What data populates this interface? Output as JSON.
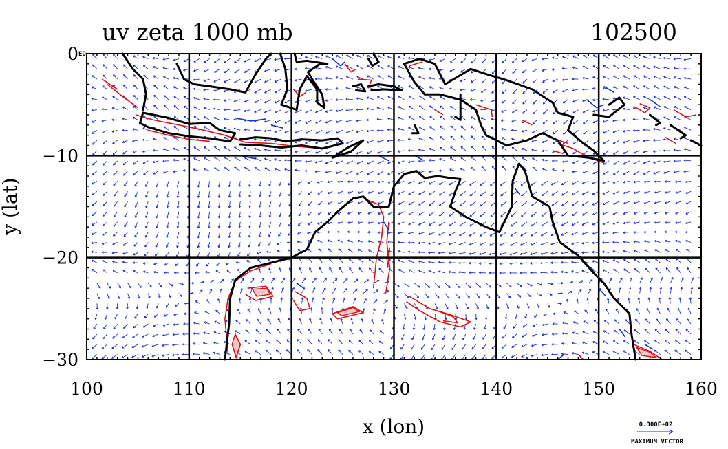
{
  "chart_data": {
    "type": "vector-field-with-contours",
    "title": "uv zeta 1000 mb",
    "time_label": "102500",
    "xlabel": "x (lon)",
    "ylabel": "y (lat)",
    "xlim": [
      100,
      160
    ],
    "ylim": [
      -30,
      0
    ],
    "x_ticks": [
      100,
      110,
      120,
      130,
      140,
      150,
      160
    ],
    "y_ticks": [
      0,
      -10,
      -20,
      -30
    ],
    "x_tick_labels": [
      "100",
      "110",
      "120",
      "130",
      "140",
      "150",
      "160"
    ],
    "y_tick_labels": [
      "0",
      "−10",
      "−20",
      "−30"
    ],
    "corner_label": "EQ",
    "grid_lines_lon": [
      110,
      120,
      130,
      140,
      150
    ],
    "grid_lines_lat": [
      -10,
      -20
    ],
    "vector_grid": {
      "lon_step": 2,
      "lat_step": 2
    },
    "legend": {
      "max_vector_value": "0.300E+02",
      "max_vector_label": "MAXIMUM VECTOR"
    },
    "colors": {
      "vectors": "#1f2fd6",
      "positive_contours": "#e01010",
      "negative_contours": "#1030d0",
      "coastline": "#000000",
      "fill": "#f4c8c8"
    },
    "coastlines": [
      [
        [
          113.5,
          -30
        ],
        [
          113.9,
          -26.5
        ],
        [
          114.0,
          -24
        ],
        [
          114.5,
          -22.2
        ],
        [
          116.0,
          -21
        ],
        [
          118.0,
          -20.5
        ],
        [
          120.0,
          -20.0
        ],
        [
          121.5,
          -19.2
        ],
        [
          122.3,
          -17.5
        ],
        [
          123.5,
          -16.5
        ],
        [
          124.5,
          -15.5
        ],
        [
          126.0,
          -14.2
        ],
        [
          127.0,
          -14.0
        ],
        [
          128.0,
          -15.0
        ],
        [
          129.5,
          -15.0
        ],
        [
          130.0,
          -13.0
        ],
        [
          131.0,
          -11.8
        ],
        [
          132.2,
          -11.5
        ],
        [
          133.0,
          -12.2
        ],
        [
          134.3,
          -12.0
        ],
        [
          135.5,
          -12.2
        ],
        [
          136.5,
          -12.3
        ],
        [
          136.0,
          -13.5
        ],
        [
          135.5,
          -15.0
        ],
        [
          137.0,
          -16.0
        ],
        [
          139.0,
          -17.0
        ],
        [
          140.3,
          -17.5
        ],
        [
          141.5,
          -15.0
        ],
        [
          141.6,
          -12.5
        ],
        [
          142.2,
          -10.8
        ],
        [
          142.8,
          -11.5
        ],
        [
          143.5,
          -14.0
        ],
        [
          145.2,
          -15.0
        ],
        [
          145.5,
          -16.5
        ],
        [
          146.2,
          -18.5
        ],
        [
          148.0,
          -19.8
        ],
        [
          149.5,
          -21.5
        ],
        [
          150.5,
          -22.5
        ],
        [
          151.5,
          -24.0
        ],
        [
          153.0,
          -25.5
        ],
        [
          153.2,
          -27.5
        ],
        [
          153.6,
          -30
        ]
      ],
      [
        [
          105.5,
          -5.8
        ],
        [
          108.0,
          -6.3
        ],
        [
          110.0,
          -6.9
        ],
        [
          112.0,
          -6.8
        ],
        [
          113.0,
          -7.5
        ],
        [
          114.5,
          -7.8
        ],
        [
          114.0,
          -8.6
        ],
        [
          112.0,
          -8.3
        ],
        [
          110.0,
          -8.1
        ],
        [
          108.0,
          -7.8
        ],
        [
          106.0,
          -7.2
        ],
        [
          105.2,
          -6.8
        ],
        [
          105.5,
          -5.8
        ]
      ],
      [
        [
          115.0,
          -8.4
        ],
        [
          116.5,
          -8.2
        ],
        [
          118.0,
          -8.3
        ],
        [
          119.5,
          -8.6
        ],
        [
          121.0,
          -8.4
        ],
        [
          123.0,
          -8.5
        ],
        [
          124.5,
          -8.3
        ],
        [
          125.0,
          -8.8
        ],
        [
          123.0,
          -9.3
        ],
        [
          121.0,
          -9.0
        ],
        [
          119.0,
          -9.2
        ],
        [
          117.0,
          -9.0
        ],
        [
          115.0,
          -8.9
        ]
      ],
      [
        [
          124.0,
          -10.2
        ],
        [
          125.5,
          -9.2
        ],
        [
          127.0,
          -8.5
        ],
        [
          125.8,
          -9.6
        ],
        [
          124.0,
          -10.2
        ]
      ],
      [
        [
          108.8,
          -1.0
        ],
        [
          109.5,
          -2.5
        ],
        [
          110.5,
          -3.0
        ],
        [
          112.0,
          -3.2
        ],
        [
          114.0,
          -3.5
        ],
        [
          115.5,
          -3.8
        ],
        [
          116.5,
          -2.0
        ],
        [
          117.5,
          -0.5
        ],
        [
          118.0,
          0
        ]
      ],
      [
        [
          103.5,
          0
        ],
        [
          104.5,
          -1.5
        ],
        [
          105.5,
          -2.5
        ],
        [
          105.8,
          -4.0
        ],
        [
          105.5,
          -5.5
        ]
      ],
      [
        [
          118.9,
          0
        ],
        [
          119.4,
          -1.5
        ],
        [
          119.6,
          -3.5
        ],
        [
          119.0,
          -5.0
        ],
        [
          120.5,
          -5.5
        ],
        [
          120.8,
          -3.5
        ],
        [
          121.5,
          -2.2
        ],
        [
          122.5,
          -3.5
        ],
        [
          122.5,
          -4.8
        ],
        [
          123.2,
          -5.3
        ],
        [
          123.0,
          -4.0
        ],
        [
          122.2,
          -2.8
        ],
        [
          121.6,
          -1.8
        ],
        [
          122.8,
          -1.0
        ],
        [
          123.5,
          -1.0
        ],
        [
          121.5,
          -0.7
        ],
        [
          120.5,
          -0.8
        ],
        [
          120.3,
          0
        ]
      ],
      [
        [
          131.0,
          -1.0
        ],
        [
          132.5,
          -0.5
        ],
        [
          134.0,
          -1.0
        ],
        [
          135.0,
          -3.0
        ],
        [
          137.5,
          -1.5
        ],
        [
          139.0,
          -2.0
        ],
        [
          141.0,
          -2.6
        ],
        [
          143.5,
          -3.5
        ],
        [
          145.5,
          -4.8
        ],
        [
          146.0,
          -5.8
        ],
        [
          147.5,
          -6.2
        ],
        [
          147.0,
          -7.5
        ],
        [
          148.5,
          -8.8
        ],
        [
          149.5,
          -9.5
        ],
        [
          150.5,
          -10.5
        ],
        [
          149.0,
          -10.2
        ],
        [
          147.0,
          -10.0
        ],
        [
          146.0,
          -8.5
        ],
        [
          144.5,
          -7.8
        ],
        [
          143.0,
          -8.5
        ],
        [
          141.0,
          -9.0
        ],
        [
          139.0,
          -8.0
        ],
        [
          138.5,
          -7.0
        ],
        [
          138.0,
          -5.5
        ],
        [
          136.5,
          -4.5
        ],
        [
          134.5,
          -4.0
        ],
        [
          133.0,
          -4.0
        ],
        [
          132.0,
          -2.8
        ],
        [
          131.0,
          -1.0
        ]
      ],
      [
        [
          127.5,
          -3.2
        ],
        [
          128.5,
          -3.0
        ],
        [
          130.0,
          -3.2
        ],
        [
          130.8,
          -3.6
        ],
        [
          129.0,
          -3.5
        ],
        [
          127.8,
          -3.6
        ]
      ],
      [
        [
          126.0,
          -3.2
        ],
        [
          126.8,
          -3.0
        ],
        [
          127.2,
          -3.7
        ],
        [
          126.3,
          -3.6
        ]
      ],
      [
        [
          128.0,
          0
        ],
        [
          128.5,
          -0.8
        ],
        [
          127.9,
          -1.2
        ],
        [
          127.5,
          -0.5
        ]
      ],
      [
        [
          151.0,
          -5.0
        ],
        [
          152.0,
          -4.3
        ],
        [
          152.5,
          -5.0
        ],
        [
          151.0,
          -6.2
        ],
        [
          149.5,
          -6.0
        ]
      ],
      [
        [
          155.0,
          -6.0
        ],
        [
          156.0,
          -6.8
        ],
        [
          155.6,
          -7.0
        ]
      ],
      [
        [
          157.0,
          -7.0
        ],
        [
          158.5,
          -8.0
        ],
        [
          158.0,
          -8.3
        ]
      ],
      [
        [
          159.0,
          -8.5
        ],
        [
          160.0,
          -9.0
        ]
      ],
      [
        [
          136.5,
          -4.0
        ],
        [
          136.5,
          -6.5
        ],
        [
          136.0,
          -6.2
        ]
      ],
      [
        [
          132.0,
          -7.0
        ],
        [
          132.4,
          -7.8
        ],
        [
          131.8,
          -7.8
        ]
      ]
    ],
    "positive_contours": [
      [
        [
          113.8,
          -29.5
        ],
        [
          113.5,
          -26
        ],
        [
          113.8,
          -24
        ],
        [
          114.5,
          -22.3
        ],
        [
          116,
          -21.3
        ],
        [
          118,
          -20.6
        ]
      ],
      [
        [
          114.5,
          -27.5
        ],
        [
          115,
          -28.5
        ],
        [
          114.6,
          -29.8
        ],
        [
          114.2,
          -28.5
        ]
      ],
      [
        [
          115.7,
          -23.0
        ],
        [
          117.5,
          -22.8
        ],
        [
          118.2,
          -23.8
        ],
        [
          116.5,
          -24.2
        ],
        [
          115.5,
          -23.6
        ]
      ],
      [
        [
          120.3,
          -23.3
        ],
        [
          121.5,
          -24.0
        ],
        [
          121.8,
          -25.0
        ],
        [
          120.8,
          -25.2
        ],
        [
          120.2,
          -24.2
        ]
      ],
      [
        [
          124.0,
          -25.5
        ],
        [
          126.0,
          -24.8
        ],
        [
          127.0,
          -25.4
        ],
        [
          124.5,
          -26.0
        ],
        [
          124.0,
          -25.5
        ]
      ],
      [
        [
          128.0,
          -23.0
        ],
        [
          128.3,
          -20.0
        ],
        [
          128.8,
          -18.0
        ],
        [
          129.0,
          -16.0
        ],
        [
          128.5,
          -14.8
        ],
        [
          127.3,
          -14.3
        ]
      ],
      [
        [
          129.2,
          -23.5
        ],
        [
          129.6,
          -21.0
        ],
        [
          129.3,
          -18.5
        ],
        [
          129.5,
          -16.5
        ]
      ],
      [
        [
          131.5,
          -23.8
        ],
        [
          133.5,
          -25.0
        ],
        [
          135.5,
          -25.6
        ],
        [
          137.5,
          -26.3
        ],
        [
          136.5,
          -26.8
        ],
        [
          134.5,
          -26.3
        ],
        [
          132.5,
          -25.2
        ],
        [
          131.2,
          -24.3
        ]
      ],
      [
        [
          134.2,
          -25.2
        ],
        [
          135.8,
          -25.8
        ],
        [
          136.2,
          -26.4
        ],
        [
          134.8,
          -26.2
        ]
      ],
      [
        [
          104.8,
          -6.0
        ],
        [
          106.5,
          -6.5
        ],
        [
          108.5,
          -6.9
        ],
        [
          111.0,
          -7.4
        ],
        [
          113.5,
          -8.0
        ],
        [
          115.5,
          -8.7
        ],
        [
          118.0,
          -8.8
        ],
        [
          120.5,
          -9.1
        ],
        [
          123.0,
          -9.3
        ]
      ],
      [
        [
          106.0,
          -7.5
        ],
        [
          108.0,
          -8.0
        ],
        [
          110.0,
          -8.4
        ],
        [
          112.0,
          -8.6
        ]
      ],
      [
        [
          102.0,
          -3.0
        ],
        [
          103.5,
          -4.2
        ],
        [
          105.0,
          -5.3
        ]
      ],
      [
        [
          101.5,
          -2.5
        ],
        [
          103.0,
          -3.5
        ]
      ],
      [
        [
          120.2,
          -3.5
        ],
        [
          120.8,
          -4.2
        ],
        [
          121.4,
          -3.8
        ]
      ],
      [
        [
          125.2,
          -1.0
        ],
        [
          125.8,
          -1.8
        ],
        [
          126.3,
          -1.5
        ]
      ],
      [
        [
          126.5,
          -2.5
        ],
        [
          127.8,
          -2.6
        ],
        [
          127.5,
          -3.4
        ]
      ],
      [
        [
          131.5,
          -1.2
        ],
        [
          132.8,
          -0.8
        ]
      ],
      [
        [
          138.0,
          -5.0
        ],
        [
          139.5,
          -5.5
        ],
        [
          139.6,
          -6.2
        ]
      ],
      [
        [
          146.0,
          -8.8
        ],
        [
          147.5,
          -9.3
        ],
        [
          149.0,
          -10.2
        ],
        [
          150.5,
          -10.7
        ]
      ],
      [
        [
          145.5,
          -8.3
        ],
        [
          147.0,
          -8.8
        ]
      ],
      [
        [
          153.5,
          -5.2
        ],
        [
          154.5,
          -5.8
        ],
        [
          155.0,
          -5.3
        ],
        [
          154.0,
          -4.9
        ]
      ],
      [
        [
          157.3,
          -5.5
        ],
        [
          158.5,
          -6.2
        ],
        [
          159.5,
          -6.0
        ]
      ],
      [
        [
          156.5,
          -8.2
        ],
        [
          157.5,
          -8.8
        ]
      ],
      [
        [
          153.4,
          -28.5
        ],
        [
          155.0,
          -29.2
        ],
        [
          156.2,
          -30.0
        ]
      ],
      [
        [
          148.0,
          -29.5
        ],
        [
          148.5,
          -30.0
        ]
      ],
      [
        [
          145.5,
          -9.5
        ],
        [
          146.5,
          -9.8
        ]
      ],
      [
        [
          142.5,
          -6.5
        ],
        [
          143.5,
          -7.0
        ]
      ],
      [
        [
          134.0,
          -5.5
        ],
        [
          134.8,
          -6.0
        ]
      ]
    ],
    "negative_contours": [
      [
        [
          114.5,
          -6.3
        ],
        [
          116.0,
          -6.6
        ],
        [
          117.5,
          -6.4
        ]
      ],
      [
        [
          118.0,
          -7.0
        ],
        [
          119.2,
          -7.3
        ]
      ],
      [
        [
          115.0,
          -10.0
        ],
        [
          116.5,
          -10.3
        ]
      ],
      [
        [
          124.0,
          -0.5
        ],
        [
          124.8,
          -1.2
        ],
        [
          125.2,
          -0.8
        ]
      ],
      [
        [
          128.5,
          -10.0
        ],
        [
          129.5,
          -10.5
        ]
      ],
      [
        [
          132.0,
          -10.0
        ],
        [
          132.8,
          -10.4
        ]
      ],
      [
        [
          141.8,
          -13.2
        ],
        [
          142.3,
          -13.8
        ]
      ],
      [
        [
          148.8,
          -4.5
        ],
        [
          149.8,
          -5.3
        ],
        [
          150.5,
          -5.0
        ]
      ],
      [
        [
          150.5,
          -3.2
        ],
        [
          151.5,
          -3.8
        ]
      ],
      [
        [
          155.0,
          -4.5
        ],
        [
          156.0,
          -5.2
        ]
      ],
      [
        [
          148.5,
          -20.5
        ],
        [
          149.5,
          -21.2
        ]
      ],
      [
        [
          150.0,
          -23.0
        ],
        [
          150.7,
          -23.8
        ]
      ],
      [
        [
          152.0,
          -27.0
        ],
        [
          152.6,
          -27.8
        ]
      ],
      [
        [
          154.5,
          -28.5
        ],
        [
          155.3,
          -29.0
        ]
      ],
      [
        [
          129.0,
          -16.5
        ],
        [
          129.5,
          -17.3
        ]
      ],
      [
        [
          120.5,
          -22.5
        ],
        [
          121.2,
          -23.0
        ]
      ],
      [
        [
          146.0,
          -30.0
        ],
        [
          146.6,
          -29.5
        ]
      ]
    ],
    "positive_filled": [
      [
        [
          114.5,
          -27.5
        ],
        [
          115,
          -28.5
        ],
        [
          114.6,
          -29.8
        ],
        [
          114.2,
          -28.5
        ]
      ],
      [
        [
          116.2,
          -23.1
        ],
        [
          117.6,
          -23.0
        ],
        [
          117.9,
          -23.6
        ],
        [
          116.6,
          -23.8
        ]
      ],
      [
        [
          124.5,
          -25.4
        ],
        [
          126.0,
          -24.9
        ],
        [
          126.6,
          -25.3
        ],
        [
          124.9,
          -25.7
        ]
      ],
      [
        [
          129.4,
          -21.0
        ],
        [
          129.6,
          -19.0
        ],
        [
          129.3,
          -20.0
        ]
      ],
      [
        [
          153.7,
          -28.8
        ],
        [
          155.0,
          -29.3
        ],
        [
          155.6,
          -29.8
        ],
        [
          154.2,
          -29.6
        ]
      ]
    ]
  }
}
